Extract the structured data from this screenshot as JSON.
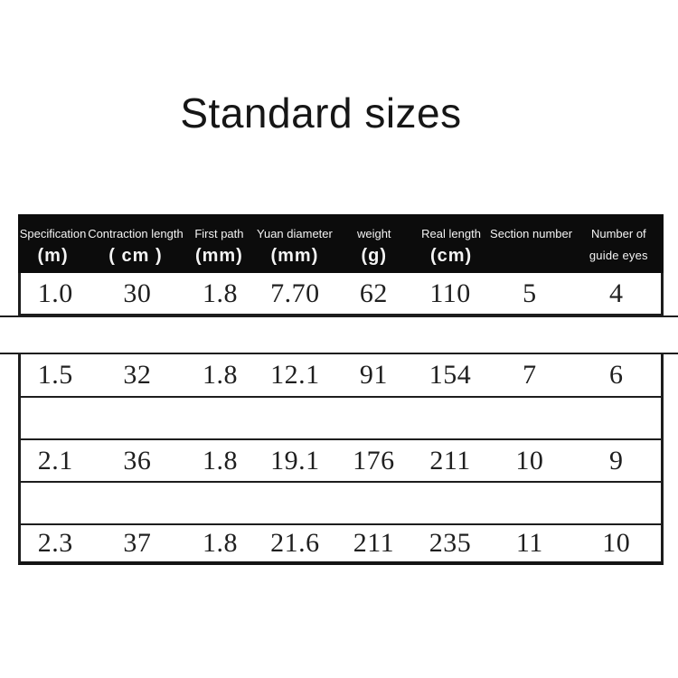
{
  "page": {
    "title": "Standard sizes",
    "colors": {
      "background": "#ffffff",
      "header_bg": "#0c0c0c",
      "header_text": "#f4f4f4",
      "border": "#1d1d1d",
      "data_text": "#1f1f1f"
    }
  },
  "table": {
    "columns": [
      {
        "label": "Specification",
        "unit": "(m)"
      },
      {
        "label": "Contraction length",
        "unit": "( cm )"
      },
      {
        "label": "First path",
        "unit": "(mm)"
      },
      {
        "label": "Yuan diameter",
        "unit": "(mm)"
      },
      {
        "label": "weight",
        "unit": "(g)"
      },
      {
        "label": "Real length",
        "unit": "(cm)"
      },
      {
        "label": "Section number",
        "unit": ""
      },
      {
        "label": "Number of",
        "unit": "guide eyes"
      }
    ],
    "rows": [
      [
        "1.0",
        "30",
        "1.8",
        "7.70",
        "62",
        "110",
        "5",
        "4"
      ],
      [
        "1.5",
        "32",
        "1.8",
        "12.1",
        "91",
        "154",
        "7",
        "6"
      ],
      [
        "2.1",
        "36",
        "1.8",
        "19.1",
        "176",
        "211",
        "10",
        "9"
      ],
      [
        "2.3",
        "37",
        "1.8",
        "21.6",
        "211",
        "235",
        "11",
        "10"
      ]
    ]
  }
}
